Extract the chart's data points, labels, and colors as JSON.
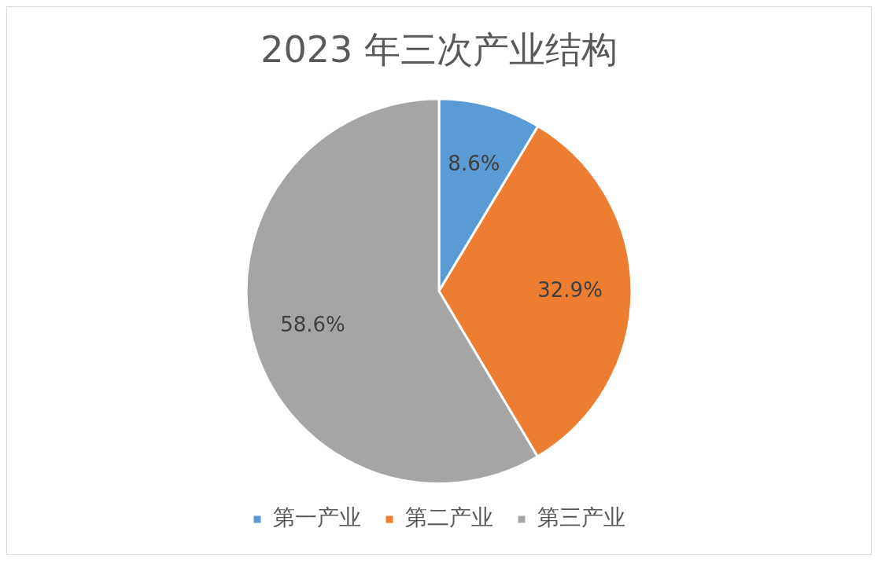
{
  "chart_data": {
    "type": "pie",
    "title": "2023 年三次产业结构",
    "categories": [
      "第一产业",
      "第二产业",
      "第三产业"
    ],
    "values": [
      8.6,
      32.9,
      58.6
    ],
    "colors": [
      "#5b9bd5",
      "#ed7d31",
      "#a5a5a5"
    ],
    "value_labels": [
      "8.6%",
      "32.9%",
      "58.6%"
    ],
    "legend": "bottom"
  }
}
